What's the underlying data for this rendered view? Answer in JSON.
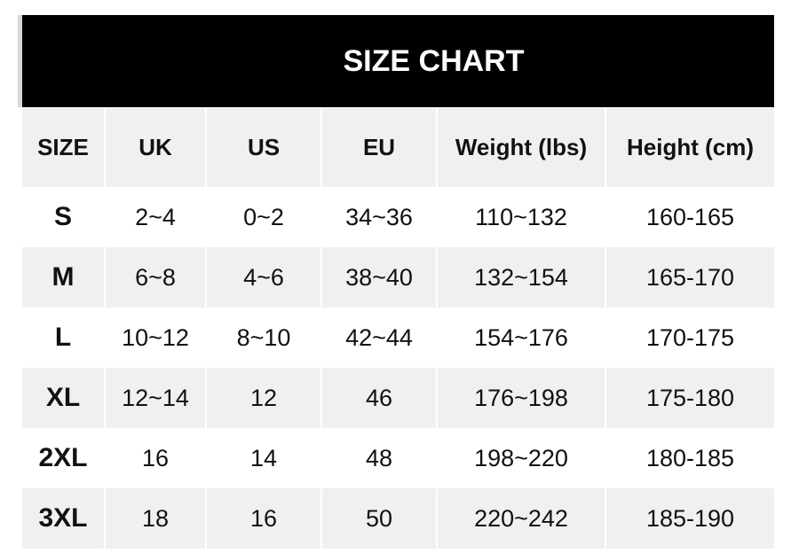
{
  "title": "SIZE CHART",
  "headers": [
    "SIZE",
    "UK",
    "US",
    "EU",
    "Weight (lbs)",
    "Height (cm)"
  ],
  "rows": [
    [
      "S",
      "2~4",
      "0~2",
      "34~36",
      "110~132",
      "160-165"
    ],
    [
      "M",
      "6~8",
      "4~6",
      "38~40",
      "132~154",
      "165-170"
    ],
    [
      "L",
      "10~12",
      "8~10",
      "42~44",
      "154~176",
      "170-175"
    ],
    [
      "XL",
      "12~14",
      "12",
      "46",
      "176~198",
      "175-180"
    ],
    [
      "2XL",
      "16",
      "14",
      "48",
      "198~220",
      "180-185"
    ],
    [
      "3XL",
      "18",
      "16",
      "50",
      "220~242",
      "185-190"
    ]
  ],
  "colors": {
    "banner": "#000000",
    "stripe": "#f0f0f0"
  }
}
